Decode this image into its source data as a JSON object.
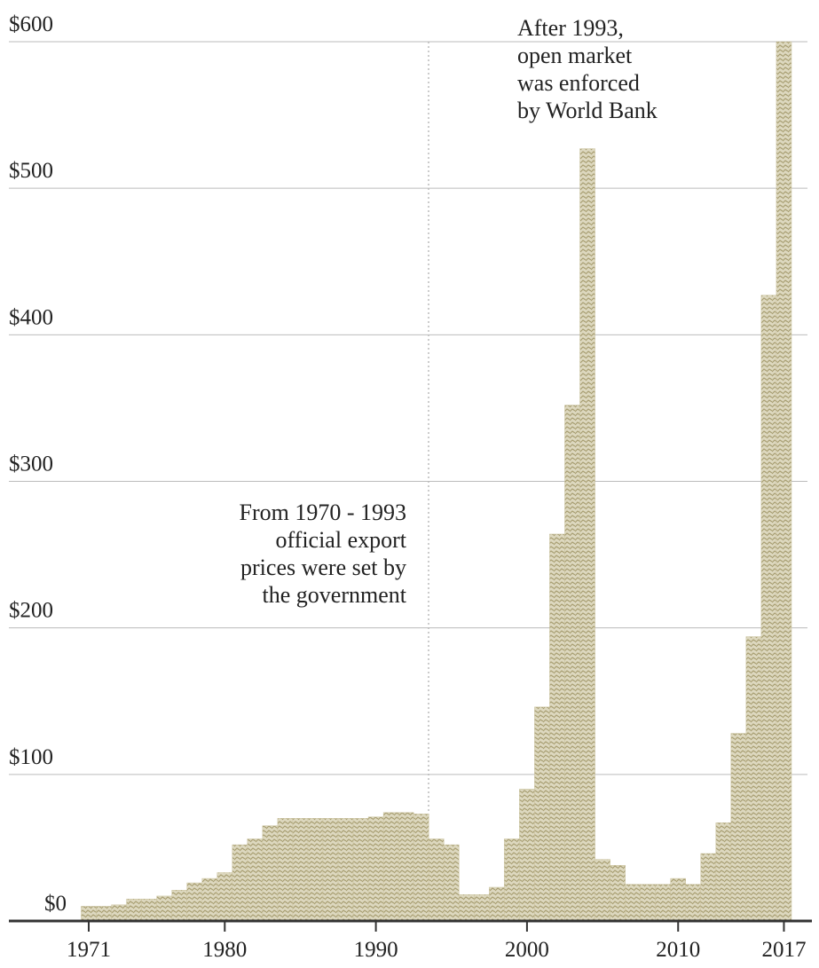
{
  "chart_data": {
    "type": "bar",
    "annotations": [
      {
        "lines": [
          "From 1970 - 1993",
          "official export",
          "prices were set by",
          "the government"
        ]
      },
      {
        "lines": [
          "After 1993,",
          "open market",
          "was enforced",
          "by World Bank"
        ]
      }
    ],
    "x": [
      1971,
      1972,
      1973,
      1974,
      1975,
      1976,
      1977,
      1978,
      1979,
      1980,
      1981,
      1982,
      1983,
      1984,
      1985,
      1986,
      1987,
      1988,
      1989,
      1990,
      1991,
      1992,
      1993,
      1994,
      1995,
      1996,
      1997,
      1998,
      1999,
      2000,
      2001,
      2002,
      2003,
      2004,
      2005,
      2006,
      2007,
      2008,
      2009,
      2010,
      2011,
      2012,
      2013,
      2014,
      2015,
      2016,
      2017
    ],
    "values": [
      10,
      10,
      11,
      15,
      15,
      17,
      21,
      26,
      29,
      33,
      52,
      56,
      65,
      70,
      70,
      70,
      70,
      70,
      70,
      71,
      74,
      74,
      73,
      56,
      52,
      18,
      18,
      23,
      56,
      90,
      146,
      264,
      352,
      527,
      42,
      38,
      25,
      25,
      25,
      29,
      25,
      46,
      67,
      128,
      194,
      427,
      600
    ],
    "color": "#c9c19c",
    "xlim": [
      1970.5,
      2018.5
    ],
    "xticks": [
      1971,
      1980,
      1990,
      2000,
      2010,
      2017
    ],
    "ylim": [
      0,
      600
    ],
    "yticks": [
      {
        "value": 0,
        "label": "$0"
      },
      {
        "value": 100,
        "label": "$100"
      },
      {
        "value": 200,
        "label": "$200"
      },
      {
        "value": 300,
        "label": "$300"
      },
      {
        "value": 400,
        "label": "$400"
      },
      {
        "value": 500,
        "label": "$500"
      },
      {
        "value": 600,
        "label": "$600"
      }
    ],
    "grid": true
  }
}
